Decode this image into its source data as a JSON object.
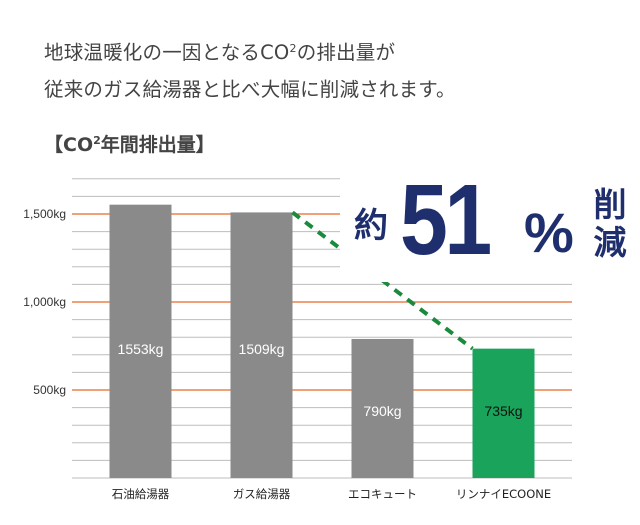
{
  "headline": {
    "line1_before": "地球温暖化の一因となるCO",
    "line1_sup": "2",
    "line1_after": "の排出量が",
    "line2": "従来のガス給湯器と比べ大幅に削減されます。"
  },
  "section_title": {
    "before": "【CO",
    "sup": "2",
    "after": "年間排出量】"
  },
  "callout": {
    "prefix": "約",
    "number": "51",
    "percent": "%",
    "suffix_char1": "削",
    "suffix_char2": "減"
  },
  "colors": {
    "bar_gray": "#8a8a8a",
    "bar_green": "#1aa35a",
    "major_grid": "#e8692a",
    "minor_grid": "#bdbdbd",
    "trend_line": "#1a8a3c",
    "callout_text": "#1f2f6e"
  },
  "chart_data": {
    "type": "bar",
    "categories": [
      "石油給湯器",
      "ガス給湯器",
      "エコキュート",
      "リンナイECOONE"
    ],
    "values": [
      1553,
      1509,
      790,
      735
    ],
    "value_labels": [
      "1553kg",
      "1509kg",
      "790kg",
      "735kg"
    ],
    "bar_colors": [
      "gray",
      "gray",
      "gray",
      "green"
    ],
    "y_ticks": [
      500,
      1000,
      1500
    ],
    "y_tick_labels": [
      "500kg",
      "1,000kg",
      "1,500kg"
    ],
    "ylim": [
      0,
      1750
    ],
    "minor_grid_step": 100,
    "trend_line": {
      "from_category": "ガス給湯器",
      "to_category": "リンナイECOONE",
      "style": "dashed"
    },
    "title": "",
    "xlabel": "",
    "ylabel": ""
  }
}
